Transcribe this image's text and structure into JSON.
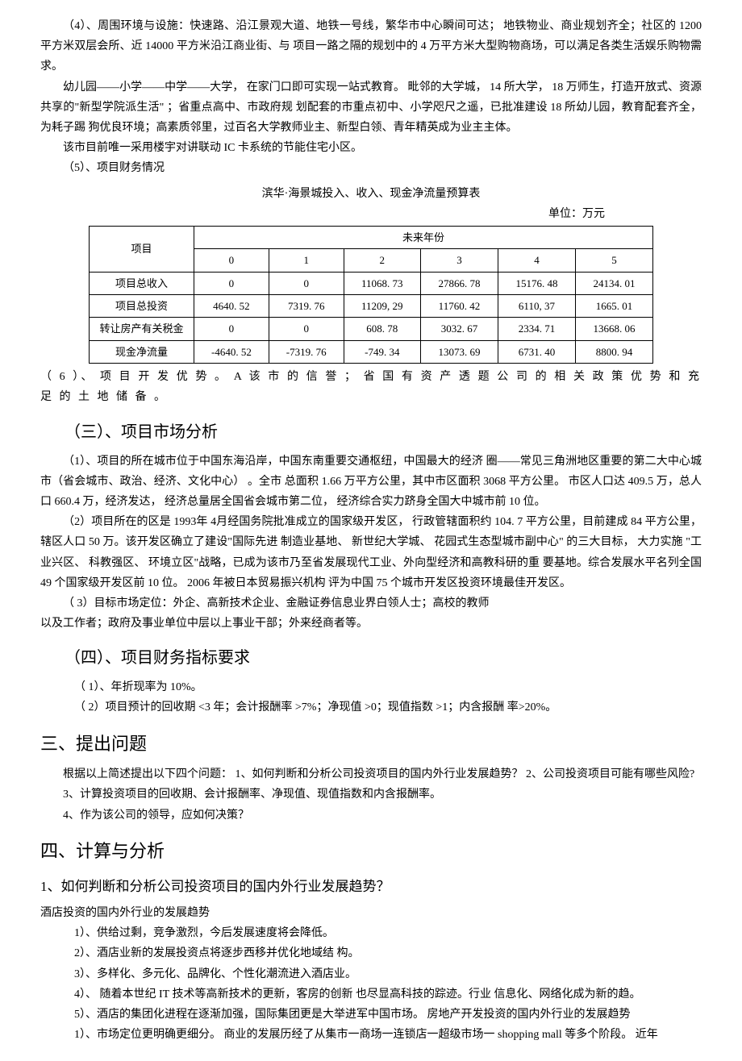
{
  "para1": "（4）、周围环境与设施：快速路、沿江景观大道、地铁一号线，繁华市中心瞬间可达； 地铁物业、商业规划齐全；社区的 1200 平方米双层会所、近 14000 平方米沿江商业街、与 项目一路之隔的规划中的 4 万平方米大型购物商场，可以满足各类生活娱乐购物需求。",
  "para2": "幼儿园——小学——中学——大学， 在家门口即可实现一站式教育。 毗邻的大学城， 14 所大学， 18 万师生，打造开放式、资源共享的\"新型学院派生活\" ；省重点高中、市政府规 划配套的市重点初中、小学咫尺之遥，已批准建设 18 所幼儿园，教育配套齐全，为耗子踢 狗优良环境；高素质邻里，过百名大学教师业主、新型白领、青年精英成为业主主体。",
  "para3": "该市目前唯一采用楼宇对讲联动 IC 卡系统的节能住宅小区。",
  "para4": "（5）、项目财务情况",
  "tableTitle": "滨华·海景城投入、收入、现金净流量预算表",
  "tableUnit": "单位：万元",
  "tableHeaderProject": "项目",
  "tableHeaderFuture": "未来年份",
  "years": [
    "0",
    "1",
    "2",
    "3",
    "4",
    "5"
  ],
  "rows": [
    {
      "label": "项目总收入",
      "values": [
        "0",
        "0",
        "11068. 73",
        "27866. 78",
        "15176. 48",
        "24134. 01"
      ]
    },
    {
      "label": "项目总投资",
      "values": [
        "4640. 52",
        "7319. 76",
        "11209, 29",
        "11760. 42",
        "6110, 37",
        "1665. 01"
      ]
    },
    {
      "label": "转让房产有关税金",
      "values": [
        "0",
        "0",
        "608. 78",
        "3032. 67",
        "2334. 71",
        "13668. 06"
      ]
    },
    {
      "label": "现金净流量",
      "values": [
        "-4640. 52",
        "-7319. 76",
        "-749. 34",
        "13073. 69",
        "6731. 40",
        "8800. 94"
      ]
    }
  ],
  "para5": "（ 6 ）、 项 目 开 发 优 势 。  A  该 市 的 信 誉 ； 省 国 有 资 产 透 题 公 司 的 相 关 政 策 优 势 和 充 足 的   土 地 储 备 。",
  "section3Title": "（三）、项目市场分析",
  "para6": "（1）、项目的所在城市位于中国东海沿岸，中国东南重要交通枢纽，中国最大的经济 圈——常见三角洲地区重要的第二大中心城市（省会城市、政治、经济、文化中心） 。全市 总面积 1.66 万平方公里，其中市区面积 3068 平方公里。 市区人口达 409.5 万，总人口 660.4 万，经济发达， 经济总量居全国省会城市第二位， 经济综合实力跻身全国大中城市前 10 位。",
  "para7": "（2）项目所在的区是 1993年 4月经国务院批准成立的国家级开发区， 行政管辖面积约 104. 7 平方公里，目前建成 84 平方公里，辖区人口 50 万。该开发区确立了建设\"国际先进 制造业基地、 新世纪大学城、 花园式生态型城市副中心\" 的三大目标， 大力实施 \"工业兴区、 科教强区、 环境立区\"战略，已成为该市乃至省发展现代工业、外向型经济和高教科研的重 要基地。综合发展水平名列全国 49 个国家级开发区前 10 位。 2006 年被日本贸易振兴机构 评为中国 75 个城市开发区投资环境最佳开发区。",
  "para8": "（ 3）目标市场定位：外企、高新技术企业、金融证券信息业界白领人士；高校的教师",
  "para9": "以及工作者；政府及事业单位中层以上事业干部；外来经商者等。",
  "section4Title": "（四）、项目财务指标要求",
  "para10": "（ 1）、年折现率为 10%。",
  "para11": "（ 2）项目预计的回收期 <3 年；会计报酬率 >7%；净现值 >0；现值指数 >1；内含报酬 率>20%。",
  "section5Title": "三、提出问题",
  "para12": "根据以上简述提出以下四个问题： 1、如何判断和分析公司投资项目的国内外行业发展趋势？ 2、公司投资项目可能有哪些风险?",
  "para13": "3、计算投资项目的回收期、会计报酬率、净现值、现值指数和内含报酬率。",
  "para14": "4、作为该公司的领导，应如何决策？",
  "section6Title": "四、计算与分析",
  "subsection1": "1、如何判断和分析公司投资项目的国内外行业发展趋势？",
  "para15": "酒店投资的国内外行业的发展趋势",
  "para16": "1）、供给过剩，竞争激烈，今后发展速度将会降低。",
  "para17": "2）、酒店业新的发展投资点将逐步西移并优化地域结  构。",
  "para18": "3）、多样化、多元化、品牌化、个性化潮流进入酒店业。",
  "para19": "4）、 随着本世纪 IT 技术等高新技术的更新，客房的创新 也尽显高科技的踪迹。行业 信息化、网络化成为新的趋。",
  "para20": "5）、酒店的集团化进程在逐渐加强，国际集团更是大举进军中国市场。 房地产开发投资的国内外行业的发展趋势",
  "para21": "1）、市场定位更明确更细分。 商业的发展历经了从集市一商场一连锁店一超级市场一 shopping mall 等多个阶段。 近年"
}
